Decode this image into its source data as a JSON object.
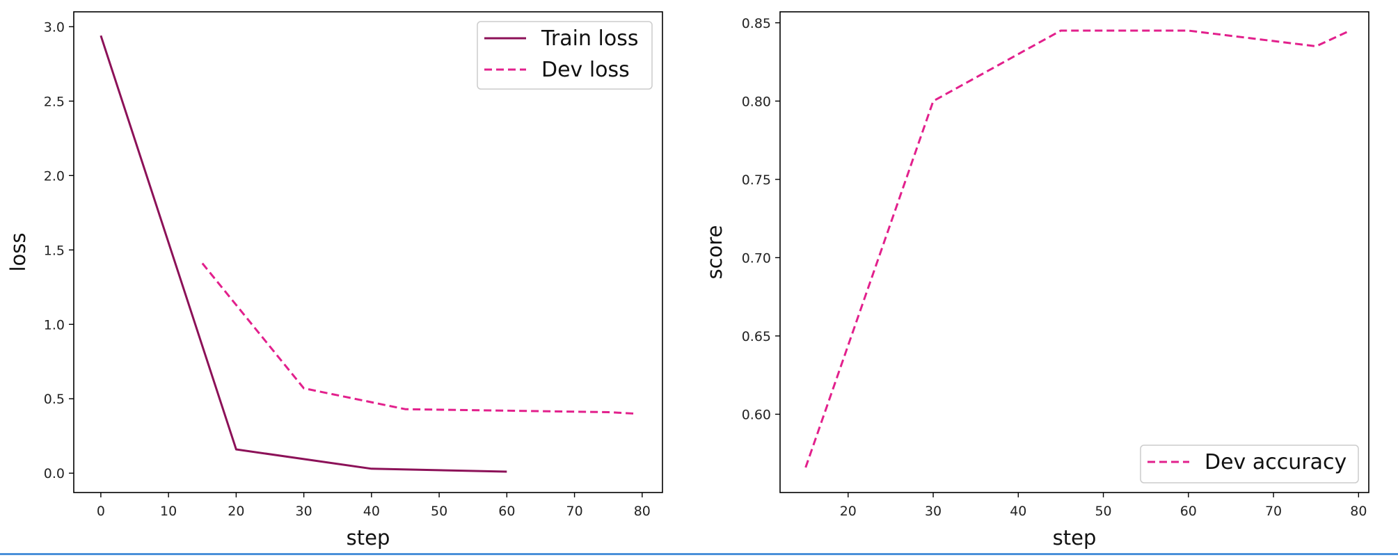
{
  "chart_data": [
    {
      "type": "line",
      "xlabel": "step",
      "ylabel": "loss",
      "xlim": [
        -4,
        83
      ],
      "ylim": [
        -0.13,
        3.1
      ],
      "xticks": [
        0,
        10,
        20,
        30,
        40,
        50,
        60,
        70,
        80
      ],
      "yticks": [
        0.0,
        0.5,
        1.0,
        1.5,
        2.0,
        2.5,
        3.0
      ],
      "ytick_labels": [
        "0.0",
        "0.5",
        "1.0",
        "1.5",
        "2.0",
        "2.5",
        "3.0"
      ],
      "grid": false,
      "legend": "top-right",
      "series": [
        {
          "name": "Train loss",
          "style": "solid",
          "color": "#8c1158",
          "x": [
            0,
            20,
            40,
            60
          ],
          "y": [
            2.94,
            0.16,
            0.03,
            0.01
          ]
        },
        {
          "name": "Dev loss",
          "style": "dashed",
          "color": "#e2208c",
          "x": [
            15,
            30,
            45,
            60,
            75,
            79
          ],
          "y": [
            1.41,
            0.57,
            0.43,
            0.42,
            0.41,
            0.4
          ]
        }
      ]
    },
    {
      "type": "line",
      "xlabel": "step",
      "ylabel": "score",
      "xlim": [
        12,
        81.2
      ],
      "ylim": [
        0.55,
        0.857
      ],
      "xticks": [
        20,
        30,
        40,
        50,
        60,
        70,
        80
      ],
      "yticks": [
        0.6,
        0.65,
        0.7,
        0.75,
        0.8,
        0.85
      ],
      "ytick_labels": [
        "0.60",
        "0.65",
        "0.70",
        "0.75",
        "0.80",
        "0.85"
      ],
      "grid": false,
      "legend": "bottom-right",
      "series": [
        {
          "name": "Dev accuracy",
          "style": "dashed",
          "color": "#e2208c",
          "x": [
            15,
            30,
            45,
            60,
            75,
            79
          ],
          "y": [
            0.566,
            0.8,
            0.845,
            0.845,
            0.835,
            0.845
          ]
        }
      ]
    }
  ]
}
